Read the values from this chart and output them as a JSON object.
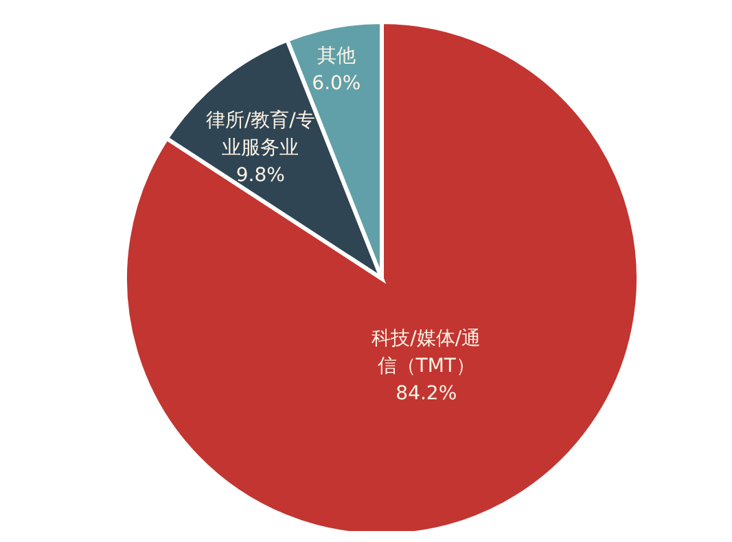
{
  "chart_data": {
    "type": "pie",
    "categories": [
      "科技/媒体/通信（TMT）",
      "律所/教育/专业服务业",
      "其他"
    ],
    "values": [
      84.2,
      9.8,
      6.0
    ],
    "value_labels": [
      "84.2%",
      "9.8%",
      "6.0%"
    ],
    "colors": [
      "#c23531",
      "#2f4554",
      "#61a0a8"
    ]
  }
}
